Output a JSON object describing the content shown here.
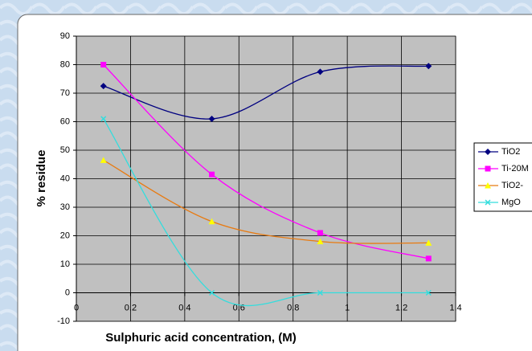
{
  "chart_data": {
    "type": "line",
    "y_label": "% residue",
    "x_label": "Sulphuric acid concentration, (M)",
    "x": [
      0.1,
      0.5,
      0.9,
      1.3
    ],
    "series": [
      {
        "name": "TiO2",
        "color": "#000080",
        "marker": "diamond",
        "values": [
          72.5,
          61,
          77.5,
          79.5
        ]
      },
      {
        "name": "Ti-20M",
        "color": "#ff00ff",
        "marker": "square",
        "values": [
          80,
          41.5,
          21,
          12
        ]
      },
      {
        "name": "TiO2-",
        "color": "#e87a10",
        "marker_color": "#ffff00",
        "marker": "triangle",
        "values": [
          46.5,
          25,
          18,
          17.5
        ]
      },
      {
        "name": "MgO",
        "color": "#33dddd",
        "marker": "x",
        "values": [
          61,
          0,
          0,
          0
        ]
      }
    ],
    "xlim": [
      0,
      1.4
    ],
    "xticks": [
      0,
      0.2,
      0.4,
      0.6,
      0.8,
      1,
      1.2,
      1.4
    ],
    "ylim": [
      -10,
      90
    ],
    "yticks": [
      -10,
      0,
      10,
      20,
      30,
      40,
      50,
      60,
      70,
      80,
      90
    ],
    "grid": true,
    "smooth": true,
    "legend": "right"
  }
}
